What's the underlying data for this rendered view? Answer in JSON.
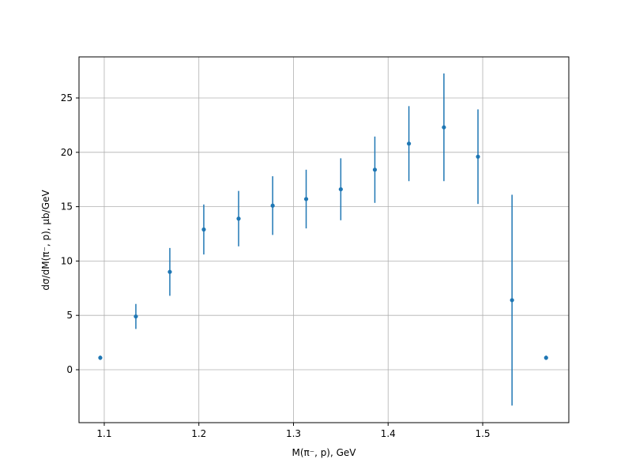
{
  "chart_data": {
    "type": "errorbar",
    "x_label": "M(π⁻, p), GeV",
    "y_label": "dσ/dM(π⁻, p), µb/GeV",
    "x": [
      1.0958,
      1.1334,
      1.1693,
      1.2052,
      1.242,
      1.278,
      1.3134,
      1.35,
      1.386,
      1.422,
      1.459,
      1.495,
      1.531,
      1.567
    ],
    "series": [
      {
        "color": "#1f77b4",
        "values": [
          1.1,
          4.9,
          9.0,
          12.9,
          13.9,
          15.1,
          15.7,
          16.6,
          18.4,
          20.8,
          22.3,
          19.6,
          6.4,
          1.1
        ],
        "errors": [
          0.2,
          1.15,
          2.2,
          2.3,
          2.55,
          2.7,
          2.7,
          2.85,
          3.05,
          3.45,
          4.95,
          4.35,
          9.7,
          0.2
        ]
      }
    ],
    "xlim": [
      1.0733,
      1.591
    ],
    "ylim": [
      -4.87,
      28.78
    ],
    "xticks": [
      1.1,
      1.2,
      1.3,
      1.4,
      1.5
    ],
    "yticks": [
      0,
      5,
      10,
      15,
      20,
      25
    ],
    "grid": true
  }
}
